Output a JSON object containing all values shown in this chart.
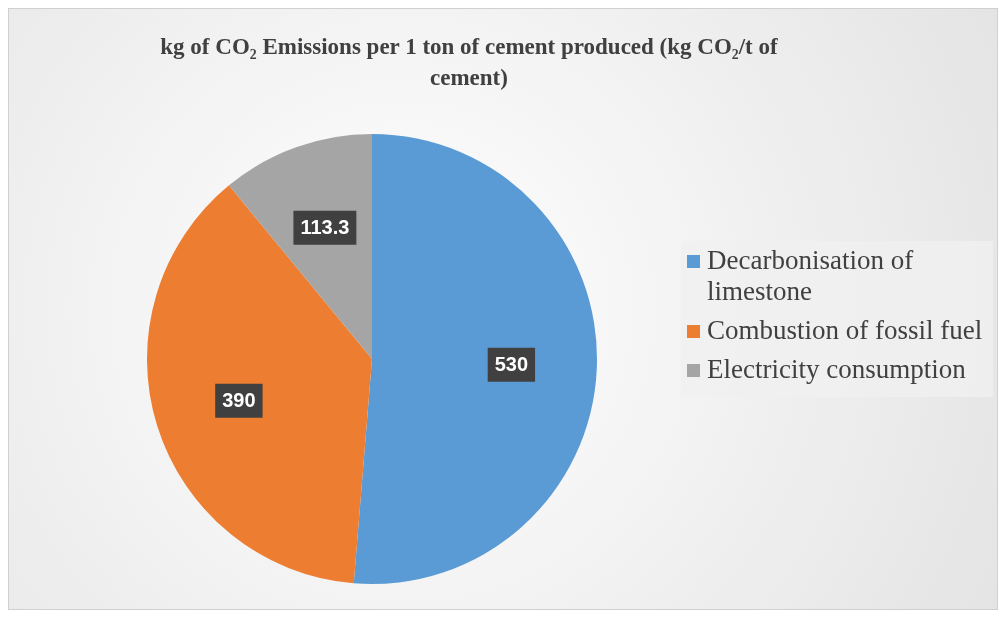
{
  "chart_data": {
    "type": "pie",
    "title": "kg of CO₂ Emissions per 1 ton of cement produced (kg CO₂/t of cement)",
    "categories": [
      "Decarbonisation of limestone",
      "Combustion of fossil fuel",
      "Electricity consumption"
    ],
    "values": [
      530,
      390,
      113.3
    ],
    "colors": [
      "#5b9bd5",
      "#ed7d31",
      "#a5a5a5"
    ],
    "data_labels": true,
    "legend": "right"
  }
}
